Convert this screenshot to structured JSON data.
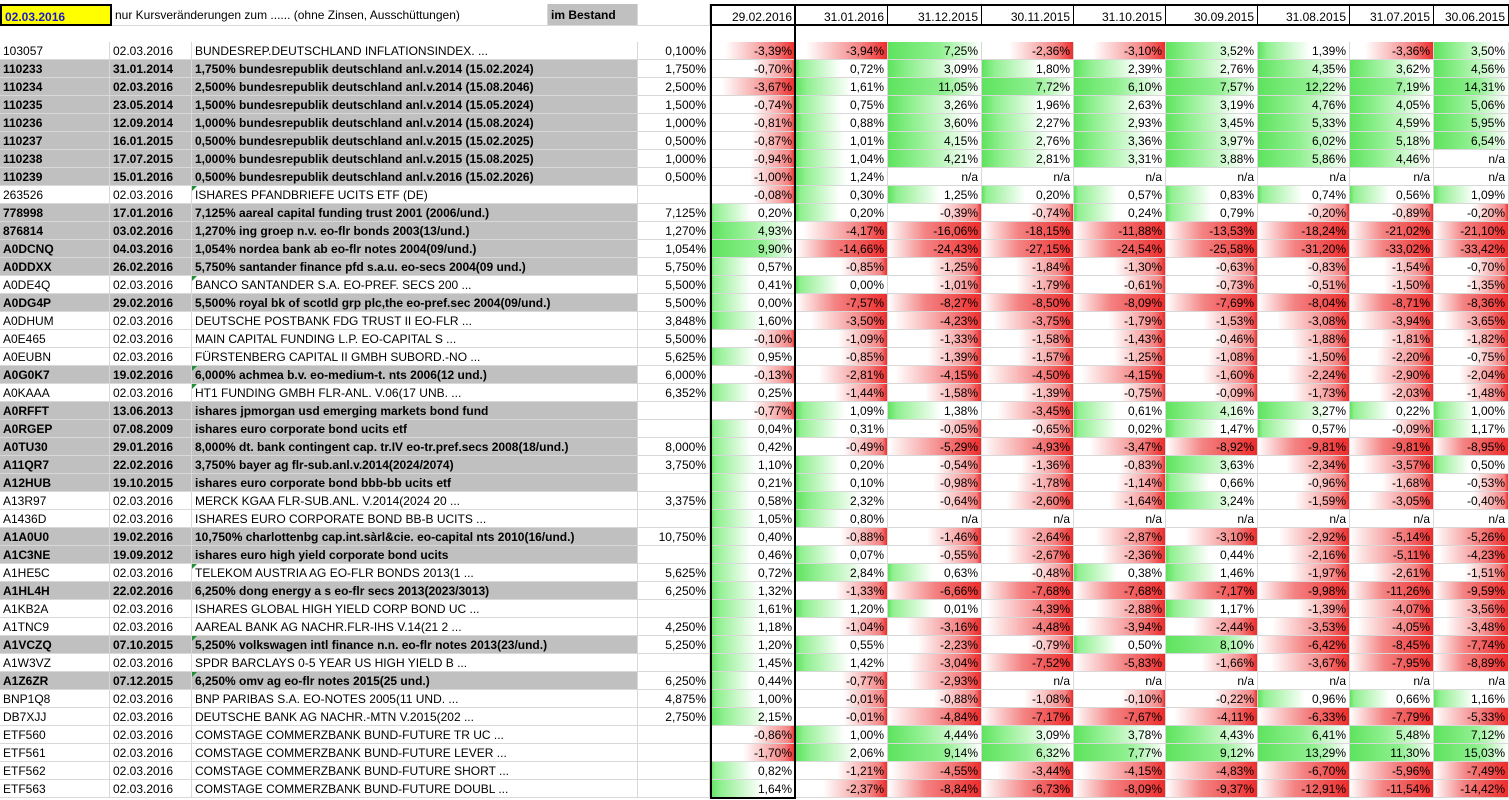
{
  "header": {
    "date": "02.03.2016",
    "note": "nur Kursveränderungen zum ......  (ohne Zinsen, Ausschüttungen)",
    "holdings": "im Bestand",
    "periods": [
      "29.02.2016",
      "31.01.2016",
      "31.12.2015",
      "30.11.2015",
      "31.10.2015",
      "30.09.2015",
      "31.08.2015",
      "31.07.2015",
      "30.06.2015"
    ]
  },
  "colors": {
    "gain": "#5ee35e",
    "loss": "#ee2c2c",
    "gray_row": "#c0c0c0",
    "header_date_bg": "#ffff00"
  },
  "rows": [
    {
      "id": "103057",
      "date": "02.03.2016",
      "name": "BUNDESREP.DEUTSCHLAND INFLATIONSINDEX. ...",
      "coupon": "0,100%",
      "gray": false,
      "tri": false,
      "values": [
        "-3,39%",
        "-3,94%",
        "7,25%",
        "-2,36%",
        "-3,10%",
        "3,52%",
        "1,39%",
        "-3,36%",
        "3,50%"
      ]
    },
    {
      "id": "110233",
      "date": "31.01.2014",
      "name": "1,750% bundesrepublik deutschland anl.v.2014 (15.02.2024)",
      "coupon": "1,750%",
      "gray": true,
      "tri": false,
      "values": [
        "-0,70%",
        "0,72%",
        "3,09%",
        "1,80%",
        "2,39%",
        "2,76%",
        "4,35%",
        "3,62%",
        "4,56%"
      ]
    },
    {
      "id": "110234",
      "date": "02.03.2016",
      "name": "2,500% bundesrepublik deutschland anl.v.2014 (15.08.2046)",
      "coupon": "2,500%",
      "gray": true,
      "tri": false,
      "values": [
        "-3,67%",
        "1,61%",
        "11,05%",
        "7,72%",
        "6,10%",
        "7,57%",
        "12,22%",
        "7,19%",
        "14,31%"
      ]
    },
    {
      "id": "110235",
      "date": "23.05.2014",
      "name": "1,500% bundesrepublik deutschland anl.v.2014 (15.05.2024)",
      "coupon": "1,500%",
      "gray": true,
      "tri": false,
      "values": [
        "-0,74%",
        "0,75%",
        "3,26%",
        "1,96%",
        "2,63%",
        "3,19%",
        "4,76%",
        "4,05%",
        "5,06%"
      ]
    },
    {
      "id": "110236",
      "date": "12.09.2014",
      "name": "1,000% bundesrepublik deutschland anl.v.2014 (15.08.2024)",
      "coupon": "1,000%",
      "gray": true,
      "tri": false,
      "values": [
        "-0,81%",
        "0,88%",
        "3,60%",
        "2,27%",
        "2,93%",
        "3,45%",
        "5,33%",
        "4,59%",
        "5,95%"
      ]
    },
    {
      "id": "110237",
      "date": "16.01.2015",
      "name": "0,500% bundesrepublik deutschland anl.v.2015 (15.02.2025)",
      "coupon": "0,500%",
      "gray": true,
      "tri": false,
      "values": [
        "-0,87%",
        "1,01%",
        "4,15%",
        "2,76%",
        "3,36%",
        "3,97%",
        "6,02%",
        "5,18%",
        "6,54%"
      ]
    },
    {
      "id": "110238",
      "date": "17.07.2015",
      "name": "1,000% bundesrepublik deutschland anl.v.2015 (15.08.2025)",
      "coupon": "1,000%",
      "gray": true,
      "tri": false,
      "values": [
        "-0,94%",
        "1,04%",
        "4,21%",
        "2,81%",
        "3,31%",
        "3,88%",
        "5,86%",
        "4,46%",
        "n/a"
      ]
    },
    {
      "id": "110239",
      "date": "15.01.2016",
      "name": "0,500% bundesrepublik deutschland anl.v.2016 (15.02.2026)",
      "coupon": "0,500%",
      "gray": true,
      "tri": false,
      "values": [
        "-1,00%",
        "1,24%",
        "n/a",
        "n/a",
        "n/a",
        "n/a",
        "n/a",
        "n/a",
        "n/a"
      ]
    },
    {
      "id": "263526",
      "date": "02.03.2016",
      "name": "ISHARES PFANDBRIEFE UCITS ETF (DE)",
      "coupon": "",
      "gray": false,
      "tri": true,
      "values": [
        "-0,08%",
        "0,30%",
        "1,25%",
        "0,20%",
        "0,57%",
        "0,83%",
        "0,74%",
        "0,56%",
        "1,09%"
      ]
    },
    {
      "id": "778998",
      "date": "17.01.2016",
      "name": "7,125% aareal capital funding trust 2001 (2006/und.)",
      "coupon": "7,125%",
      "gray": true,
      "tri": false,
      "values": [
        "0,20%",
        "0,20%",
        "-0,39%",
        "-0,74%",
        "0,24%",
        "0,79%",
        "-0,20%",
        "-0,89%",
        "-0,20%"
      ]
    },
    {
      "id": "876814",
      "date": "03.02.2016",
      "name": "1,270% ing groep n.v. eo-flr bonds 2003(13/und.)",
      "coupon": "1,270%",
      "gray": true,
      "tri": false,
      "values": [
        "4,93%",
        "-4,17%",
        "-16,06%",
        "-18,15%",
        "-11,88%",
        "-13,53%",
        "-18,24%",
        "-21,02%",
        "-21,10%"
      ]
    },
    {
      "id": "A0DCNQ",
      "date": "04.03.2016",
      "name": "1,054% nordea bank ab eo-flr notes 2004(09/und.)",
      "coupon": "1,054%",
      "gray": true,
      "tri": false,
      "values": [
        "9,90%",
        "-14,66%",
        "-24,43%",
        "-27,15%",
        "-24,54%",
        "-25,58%",
        "-31,20%",
        "-33,02%",
        "-33,42%"
      ]
    },
    {
      "id": "A0DDXX",
      "date": "26.02.2016",
      "name": "5,750% santander finance pfd s.a.u. eo-secs 2004(09 und.)",
      "coupon": "5,750%",
      "gray": true,
      "tri": false,
      "values": [
        "0,57%",
        "-0,85%",
        "-1,25%",
        "-1,84%",
        "-1,30%",
        "-0,63%",
        "-0,83%",
        "-1,54%",
        "-0,70%"
      ]
    },
    {
      "id": "A0DE4Q",
      "date": "02.03.2016",
      "name": "BANCO SANTANDER S.A. EO-PREF. SECS 200 ...",
      "coupon": "5,500%",
      "gray": false,
      "tri": true,
      "values": [
        "0,41%",
        "0,00%",
        "-1,01%",
        "-1,79%",
        "-0,61%",
        "-0,73%",
        "-0,51%",
        "-1,50%",
        "-1,35%"
      ]
    },
    {
      "id": "A0DG4P",
      "date": "29.02.2016",
      "name": "5,500% royal bk of scotld grp plc,the eo-pref.sec 2004(09/und.)",
      "coupon": "5,500%",
      "gray": true,
      "tri": false,
      "values": [
        "0,00%",
        "-7,57%",
        "-8,27%",
        "-8,50%",
        "-8,09%",
        "-7,69%",
        "-8,04%",
        "-8,71%",
        "-8,36%"
      ]
    },
    {
      "id": "A0DHUM",
      "date": "02.03.2016",
      "name": "DEUTSCHE POSTBANK FDG TRUST II EO-FLR ...",
      "coupon": "3,848%",
      "gray": false,
      "tri": false,
      "values": [
        "1,60%",
        "-3,50%",
        "-4,23%",
        "-3,75%",
        "-1,79%",
        "-1,53%",
        "-3,08%",
        "-3,94%",
        "-3,65%"
      ]
    },
    {
      "id": "A0E465",
      "date": "02.03.2016",
      "name": "MAIN CAPITAL FUNDING L.P. EO-CAPITAL S ...",
      "coupon": "5,500%",
      "gray": false,
      "tri": false,
      "values": [
        "-0,10%",
        "-1,09%",
        "-1,33%",
        "-1,58%",
        "-1,43%",
        "-0,46%",
        "-1,88%",
        "-1,81%",
        "-1,82%"
      ]
    },
    {
      "id": "A0EUBN",
      "date": "02.03.2016",
      "name": "FÜRSTENBERG CAPITAL II GMBH SUBORD.-NO ...",
      "coupon": "5,625%",
      "gray": false,
      "tri": false,
      "values": [
        "0,95%",
        "-0,85%",
        "-1,39%",
        "-1,57%",
        "-1,25%",
        "-1,08%",
        "-1,50%",
        "-2,20%",
        "-0,75%"
      ]
    },
    {
      "id": "A0G0K7",
      "date": "19.02.2016",
      "name": "6,000% achmea b.v. eo-medium-t. nts 2006(12 und.)",
      "coupon": "6,000%",
      "gray": true,
      "tri": true,
      "values": [
        "-0,13%",
        "-2,81%",
        "-4,15%",
        "-4,50%",
        "-4,15%",
        "-1,60%",
        "-2,24%",
        "-2,90%",
        "-2,04%"
      ]
    },
    {
      "id": "A0KAAA",
      "date": "02.03.2016",
      "name": "HT1 FUNDING GMBH FLR-ANL. V.06(17 UNB. ...",
      "coupon": "6,352%",
      "gray": false,
      "tri": true,
      "values": [
        "0,25%",
        "-1,44%",
        "-1,58%",
        "-1,39%",
        "-0,75%",
        "-0,09%",
        "-1,73%",
        "-2,03%",
        "-1,48%"
      ]
    },
    {
      "id": "A0RFFT",
      "date": "13.06.2013",
      "name": "ishares jpmorgan usd emerging markets bond fund",
      "coupon": "",
      "gray": true,
      "tri": false,
      "values": [
        "-0,77%",
        "1,09%",
        "1,38%",
        "-3,45%",
        "0,61%",
        "4,16%",
        "3,27%",
        "0,22%",
        "1,00%"
      ]
    },
    {
      "id": "A0RGEP",
      "date": "07.08.2009",
      "name": "ishares euro corporate bond ucits etf",
      "coupon": "",
      "gray": true,
      "tri": false,
      "values": [
        "0,04%",
        "0,31%",
        "-0,05%",
        "-0,65%",
        "0,02%",
        "1,47%",
        "0,57%",
        "-0,09%",
        "1,17%"
      ]
    },
    {
      "id": "A0TU30",
      "date": "29.01.2016",
      "name": "8,000% dt. bank contingent cap. tr.IV eo-tr.pref.secs 2008(18/und.)",
      "coupon": "8,000%",
      "gray": true,
      "tri": false,
      "values": [
        "0,42%",
        "-0,49%",
        "-5,29%",
        "-4,93%",
        "-3,47%",
        "-8,92%",
        "-9,81%",
        "-9,81%",
        "-8,95%"
      ]
    },
    {
      "id": "A11QR7",
      "date": "22.02.2016",
      "name": "3,750% bayer ag flr-sub.anl.v.2014(2024/2074)",
      "coupon": "3,750%",
      "gray": true,
      "tri": false,
      "values": [
        "1,10%",
        "0,20%",
        "-0,54%",
        "-1,36%",
        "-0,83%",
        "3,63%",
        "-2,34%",
        "-3,57%",
        "0,50%"
      ]
    },
    {
      "id": "A12HUB",
      "date": "19.10.2015",
      "name": "ishares euro corporate bond bbb-bb ucits etf",
      "coupon": "",
      "gray": true,
      "tri": false,
      "values": [
        "0,21%",
        "0,10%",
        "-0,98%",
        "-1,78%",
        "-1,14%",
        "0,66%",
        "-0,96%",
        "-1,68%",
        "-0,53%"
      ]
    },
    {
      "id": "A13R97",
      "date": "02.03.2016",
      "name": "MERCK KGAA FLR-SUB.ANL. V.2014(2024 20 ...",
      "coupon": "3,375%",
      "gray": false,
      "tri": false,
      "values": [
        "0,58%",
        "2,32%",
        "-0,64%",
        "-2,60%",
        "-1,64%",
        "3,24%",
        "-1,59%",
        "-3,05%",
        "-0,40%"
      ]
    },
    {
      "id": "A1436D",
      "date": "02.03.2016",
      "name": "ISHARES EURO CORPORATE BOND BB-B UCITS ...",
      "coupon": "",
      "gray": false,
      "tri": false,
      "values": [
        "1,05%",
        "0,80%",
        "n/a",
        "n/a",
        "n/a",
        "n/a",
        "n/a",
        "n/a",
        "n/a"
      ]
    },
    {
      "id": "A1A0U0",
      "date": "19.02.2016",
      "name": "10,750% charlottenbg cap.int.sàrl&cie. eo-capital nts 2010(16/und.)",
      "coupon": "10,750%",
      "gray": true,
      "tri": false,
      "values": [
        "0,40%",
        "-0,88%",
        "-1,46%",
        "-2,64%",
        "-2,87%",
        "-3,10%",
        "-2,92%",
        "-5,14%",
        "-5,26%"
      ]
    },
    {
      "id": "A1C3NE",
      "date": "19.09.2012",
      "name": "ishares euro high yield corporate bond ucits",
      "coupon": "",
      "gray": true,
      "tri": false,
      "values": [
        "0,46%",
        "0,07%",
        "-0,55%",
        "-2,67%",
        "-2,36%",
        "0,44%",
        "-2,16%",
        "-5,11%",
        "-4,23%"
      ]
    },
    {
      "id": "A1HE5C",
      "date": "02.03.2016",
      "name": "TELEKOM AUSTRIA AG EO-FLR BONDS 2013(1 ...",
      "coupon": "5,625%",
      "gray": false,
      "tri": true,
      "values": [
        "0,72%",
        "2,84%",
        "0,63%",
        "-0,48%",
        "0,38%",
        "1,46%",
        "-1,97%",
        "-2,61%",
        "-1,51%"
      ]
    },
    {
      "id": "A1HL4H",
      "date": "22.02.2016",
      "name": "6,250% dong energy a s eo-flr secs 2013(2023/3013)",
      "coupon": "6,250%",
      "gray": true,
      "tri": false,
      "values": [
        "1,32%",
        "-1,33%",
        "-6,66%",
        "-7,68%",
        "-7,68%",
        "-7,17%",
        "-9,98%",
        "-11,26%",
        "-9,59%"
      ]
    },
    {
      "id": "A1KB2A",
      "date": "02.03.2016",
      "name": "ISHARES GLOBAL HIGH YIELD CORP BOND UC ...",
      "coupon": "",
      "gray": false,
      "tri": false,
      "values": [
        "1,61%",
        "1,20%",
        "0,01%",
        "-4,39%",
        "-2,88%",
        "1,17%",
        "-1,39%",
        "-4,07%",
        "-3,56%"
      ]
    },
    {
      "id": "A1TNC9",
      "date": "02.03.2016",
      "name": "AAREAL BANK AG NACHR.FLR-IHS V.14(21 2 ...",
      "coupon": "4,250%",
      "gray": false,
      "tri": false,
      "values": [
        "1,18%",
        "-1,04%",
        "-3,16%",
        "-4,48%",
        "-3,94%",
        "-2,44%",
        "-3,53%",
        "-4,05%",
        "-3,48%"
      ]
    },
    {
      "id": "A1VCZQ",
      "date": "07.10.2015",
      "name": "5,250% volkswagen intl finance n.n. eo-flr notes 2013(23/und.)",
      "coupon": "5,250%",
      "gray": true,
      "tri": true,
      "values": [
        "1,20%",
        "0,55%",
        "-2,23%",
        "-0,79%",
        "0,50%",
        "8,10%",
        "-6,42%",
        "-8,45%",
        "-7,74%"
      ]
    },
    {
      "id": "A1W3VZ",
      "date": "02.03.2016",
      "name": "SPDR BARCLAYS 0-5 YEAR US HIGH YIELD B ...",
      "coupon": "",
      "gray": false,
      "tri": false,
      "values": [
        "1,45%",
        "1,42%",
        "-3,04%",
        "-7,52%",
        "-5,83%",
        "-1,66%",
        "-3,67%",
        "-7,95%",
        "-8,89%"
      ]
    },
    {
      "id": "A1Z6ZR",
      "date": "07.12.2015",
      "name": "6,250% omv ag eo-flr notes 2015(25 und.)",
      "coupon": "6,250%",
      "gray": true,
      "tri": true,
      "values": [
        "0,44%",
        "-0,77%",
        "-2,93%",
        "n/a",
        "n/a",
        "n/a",
        "n/a",
        "n/a",
        "n/a"
      ]
    },
    {
      "id": "BNP1Q8",
      "date": "02.03.2016",
      "name": "BNP PARIBAS S.A. EO-NOTES 2005(11 UND. ...",
      "coupon": "4,875%",
      "gray": false,
      "tri": false,
      "values": [
        "1,00%",
        "-0,01%",
        "-0,88%",
        "-1,08%",
        "-0,10%",
        "-0,22%",
        "0,96%",
        "0,66%",
        "1,16%"
      ]
    },
    {
      "id": "DB7XJJ",
      "date": "02.03.2016",
      "name": "DEUTSCHE BANK AG NACHR.-MTN V.2015(202 ...",
      "coupon": "2,750%",
      "gray": false,
      "tri": false,
      "values": [
        "2,15%",
        "-0,01%",
        "-4,84%",
        "-7,17%",
        "-7,67%",
        "-4,11%",
        "-6,33%",
        "-7,79%",
        "-5,33%"
      ]
    },
    {
      "id": "ETF560",
      "date": "02.03.2016",
      "name": "COMSTAGE COMMERZBANK BUND-FUTURE TR UC ...",
      "coupon": "",
      "gray": false,
      "tri": false,
      "values": [
        "-0,86%",
        "1,00%",
        "4,44%",
        "3,09%",
        "3,78%",
        "4,43%",
        "6,41%",
        "5,48%",
        "7,12%"
      ]
    },
    {
      "id": "ETF561",
      "date": "02.03.2016",
      "name": "COMSTAGE COMMERZBANK BUND-FUTURE LEVER ...",
      "coupon": "",
      "gray": false,
      "tri": false,
      "values": [
        "-1,70%",
        "2,06%",
        "9,14%",
        "6,32%",
        "7,77%",
        "9,12%",
        "13,29%",
        "11,30%",
        "15,03%"
      ]
    },
    {
      "id": "ETF562",
      "date": "02.03.2016",
      "name": "COMSTAGE COMMERZBANK BUND-FUTURE SHORT ...",
      "coupon": "",
      "gray": false,
      "tri": false,
      "values": [
        "0,82%",
        "-1,21%",
        "-4,55%",
        "-3,44%",
        "-4,15%",
        "-4,83%",
        "-6,70%",
        "-5,96%",
        "-7,49%"
      ]
    },
    {
      "id": "ETF563",
      "date": "02.03.2016",
      "name": "COMSTAGE COMMERZBANK BUND-FUTURE DOUBL ...",
      "coupon": "",
      "gray": false,
      "tri": false,
      "values": [
        "1,64%",
        "-2,37%",
        "-8,84%",
        "-6,73%",
        "-8,09%",
        "-9,37%",
        "-12,91%",
        "-11,54%",
        "-14,42%"
      ]
    }
  ]
}
